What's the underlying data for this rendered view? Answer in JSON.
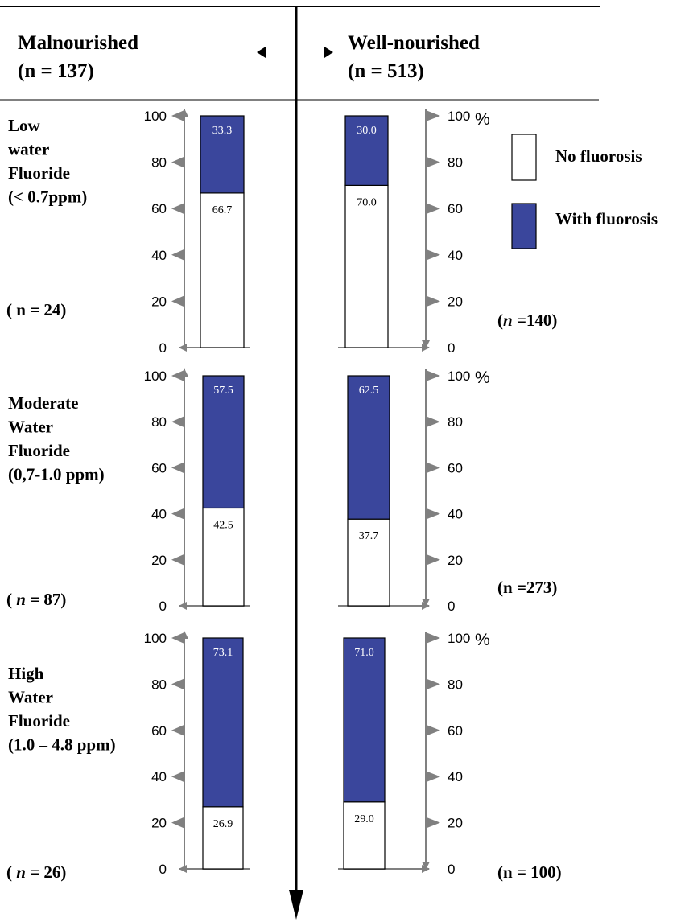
{
  "headers": {
    "left": {
      "line1": "Malnourished",
      "line2": "(n = 137)"
    },
    "right": {
      "line1": "Well-nourished",
      "line2": "(n = 513)"
    }
  },
  "colors": {
    "with_fluorosis": "#3a469c",
    "no_fluorosis": "#ffffff",
    "axis": "#808080"
  },
  "chart_data": {
    "type": "bar",
    "stacked": true,
    "ylim": [
      0,
      100
    ],
    "yticks": [
      "0",
      "20",
      "40",
      "60",
      "80",
      "100"
    ],
    "unit_label": "%",
    "legend": [
      "No fluorosis",
      "With fluorosis"
    ],
    "panels": [
      {
        "label_lines": [
          {
            "text": "Low"
          },
          {
            "text": "water"
          },
          {
            "text": "Fluoride"
          },
          {
            "text": "(< 0.7ppm)"
          }
        ],
        "left_n": {
          "pre": "( n",
          "post": " = 24)"
        },
        "right_n": {
          "pre": "(n",
          "post": " =140)",
          "italic": true
        },
        "bars": [
          {
            "group": "Malnourished",
            "no_fluorosis": 66.7,
            "with_fluorosis": 33.3,
            "no_label": "66.7",
            "with_label": "33.3"
          },
          {
            "group": "Well-nourished",
            "no_fluorosis": 70.0,
            "with_fluorosis": 30.0,
            "no_label": "70.0",
            "with_label": "30.0"
          }
        ]
      },
      {
        "label_lines": [
          {
            "text": "Moderate"
          },
          {
            "text": "Water"
          },
          {
            "text": "Fluoride"
          },
          {
            "text": "(0,7-1.0 ppm)"
          }
        ],
        "left_n": {
          "pre": "( n",
          "post": " = 87)",
          "italic": true
        },
        "right_n": {
          "pre": "(n",
          "post": " =273)"
        },
        "bars": [
          {
            "group": "Malnourished",
            "no_fluorosis": 42.5,
            "with_fluorosis": 57.5,
            "no_label": "42.5",
            "with_label": "57.5"
          },
          {
            "group": "Well-nourished",
            "no_fluorosis": 37.7,
            "with_fluorosis": 62.5,
            "no_label": "37.7",
            "with_label": "62.5"
          }
        ]
      },
      {
        "label_lines": [
          {
            "text": "High"
          },
          {
            "text": "Water"
          },
          {
            "text": "Fluoride"
          },
          {
            "text": "(1.0 – 4.8 ppm)"
          }
        ],
        "left_n": {
          "pre": "( n",
          "post": " = 26)",
          "italic": true
        },
        "right_n": {
          "pre": "(n",
          "post": " = 100)"
        },
        "bars": [
          {
            "group": "Malnourished",
            "no_fluorosis": 26.9,
            "with_fluorosis": 73.1,
            "no_label": "26.9",
            "with_label": "73.1"
          },
          {
            "group": "Well-nourished",
            "no_fluorosis": 29.0,
            "with_fluorosis": 71.0,
            "no_label": "29.0",
            "with_label": "71.0"
          }
        ]
      }
    ]
  }
}
